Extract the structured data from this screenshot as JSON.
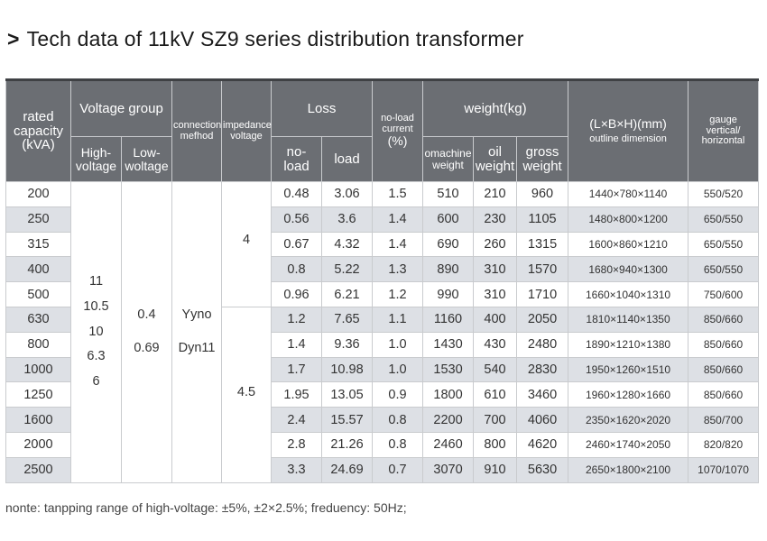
{
  "title": {
    "arrow": ">",
    "text": "Tech data of 11kV SZ9 series distribution transformer"
  },
  "headers": {
    "rated_capacity": [
      "rated",
      "capacity",
      "(kVA)"
    ],
    "voltage_group": "Voltage group",
    "high_voltage": [
      "High-",
      "voltage"
    ],
    "low_voltage": [
      "Low-",
      "woltage"
    ],
    "connection_method": [
      "connection",
      "mefhod"
    ],
    "impedance_voltage": [
      "impedance",
      "voltage"
    ],
    "loss": "Loss",
    "no_load": [
      "no-",
      "load"
    ],
    "load": "load",
    "no_load_current": [
      "no-load",
      "current",
      "(%)"
    ],
    "weight": "weight(kg)",
    "machine_weight": [
      "omachine",
      "weight"
    ],
    "oil_weight": [
      "oil",
      "weight"
    ],
    "gross_weight": [
      "gross",
      "weight"
    ],
    "outline_dimension": [
      "(L×B×H)(mm)",
      "outline dimension"
    ],
    "gauge": [
      "gauge",
      "vertical/",
      "horizontal"
    ]
  },
  "merged": {
    "high_voltage_values": [
      "11",
      "10.5",
      "10",
      "6.3",
      "6"
    ],
    "low_voltage_values": [
      "0.4",
      "0.69"
    ],
    "connection_values": [
      "Yyno",
      "Dyn11"
    ],
    "impedance_group1": "4",
    "impedance_group2": "4.5"
  },
  "rows": [
    {
      "capacity": "200",
      "no_load": "0.48",
      "load": "3.06",
      "current": "1.5",
      "machine": "510",
      "oil": "210",
      "gross": "960",
      "dimension": "1440×780×1140",
      "gauge": "550/520"
    },
    {
      "capacity": "250",
      "no_load": "0.56",
      "load": "3.6",
      "current": "1.4",
      "machine": "600",
      "oil": "230",
      "gross": "1105",
      "dimension": "1480×800×1200",
      "gauge": "650/550"
    },
    {
      "capacity": "315",
      "no_load": "0.67",
      "load": "4.32",
      "current": "1.4",
      "machine": "690",
      "oil": "260",
      "gross": "1315",
      "dimension": "1600×860×1210",
      "gauge": "650/550"
    },
    {
      "capacity": "400",
      "no_load": "0.8",
      "load": "5.22",
      "current": "1.3",
      "machine": "890",
      "oil": "310",
      "gross": "1570",
      "dimension": "1680×940×1300",
      "gauge": "650/550"
    },
    {
      "capacity": "500",
      "no_load": "0.96",
      "load": "6.21",
      "current": "1.2",
      "machine": "990",
      "oil": "310",
      "gross": "1710",
      "dimension": "1660×1040×1310",
      "gauge": "750/600"
    },
    {
      "capacity": "630",
      "no_load": "1.2",
      "load": "7.65",
      "current": "1.1",
      "machine": "1160",
      "oil": "400",
      "gross": "2050",
      "dimension": "1810×1140×1350",
      "gauge": "850/660"
    },
    {
      "capacity": "800",
      "no_load": "1.4",
      "load": "9.36",
      "current": "1.0",
      "machine": "1430",
      "oil": "430",
      "gross": "2480",
      "dimension": "1890×1210×1380",
      "gauge": "850/660"
    },
    {
      "capacity": "1000",
      "no_load": "1.7",
      "load": "10.98",
      "current": "1.0",
      "machine": "1530",
      "oil": "540",
      "gross": "2830",
      "dimension": "1950×1260×1510",
      "gauge": "850/660"
    },
    {
      "capacity": "1250",
      "no_load": "1.95",
      "load": "13.05",
      "current": "0.9",
      "machine": "1800",
      "oil": "610",
      "gross": "3460",
      "dimension": "1960×1280×1660",
      "gauge": "850/660"
    },
    {
      "capacity": "1600",
      "no_load": "2.4",
      "load": "15.57",
      "current": "0.8",
      "machine": "2200",
      "oil": "700",
      "gross": "4060",
      "dimension": "2350×1620×2020",
      "gauge": "850/700"
    },
    {
      "capacity": "2000",
      "no_load": "2.8",
      "load": "21.26",
      "current": "0.8",
      "machine": "2460",
      "oil": "800",
      "gross": "4620",
      "dimension": "2460×1740×2050",
      "gauge": "820/820"
    },
    {
      "capacity": "2500",
      "no_load": "3.3",
      "load": "24.69",
      "current": "0.7",
      "machine": "3070",
      "oil": "910",
      "gross": "5630",
      "dimension": "2650×1800×2100",
      "gauge": "1070/1070"
    }
  ],
  "note": "nonte: tanpping range of high-voltage: ±5%,  ±2×2.5%; freduency: 50Hz;"
}
